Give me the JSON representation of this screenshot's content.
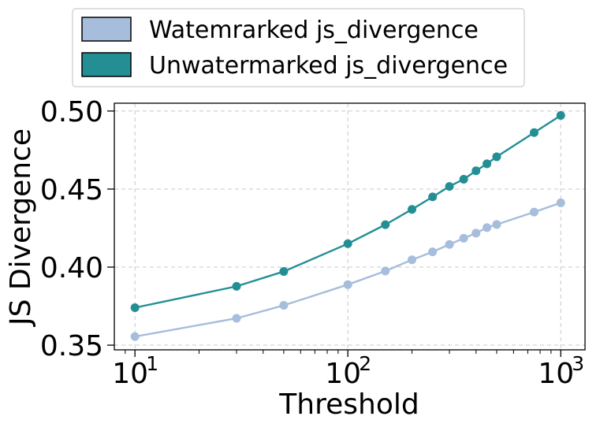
{
  "chart_data": {
    "type": "line",
    "title": "",
    "xlabel": "Threshold",
    "ylabel": "JS Divergence",
    "xscale": "log",
    "xlim": [
      8,
      1300
    ],
    "ylim": [
      0.347,
      0.505
    ],
    "grid": true,
    "legend_position": "top-center",
    "x_ticks": [
      {
        "value": 10,
        "base": "10",
        "exp": "1"
      },
      {
        "value": 100,
        "base": "10",
        "exp": "2"
      },
      {
        "value": 1000,
        "base": "10",
        "exp": "3"
      }
    ],
    "y_ticks": [
      {
        "value": 0.35,
        "label": "0.35"
      },
      {
        "value": 0.4,
        "label": "0.40"
      },
      {
        "value": 0.45,
        "label": "0.45"
      },
      {
        "value": 0.5,
        "label": "0.50"
      }
    ],
    "x": [
      10,
      30,
      50,
      100,
      150,
      200,
      250,
      300,
      350,
      400,
      450,
      500,
      750,
      1000
    ],
    "series": [
      {
        "name": "Watemrarked js_divergence",
        "color": "#a6bddb",
        "values": [
          0.3555,
          0.3672,
          0.3755,
          0.3888,
          0.3975,
          0.4047,
          0.4098,
          0.4145,
          0.4185,
          0.4218,
          0.4253,
          0.4273,
          0.4353,
          0.4412
        ]
      },
      {
        "name": "Unwatermarked js_divergence",
        "color": "#238f94",
        "values": [
          0.374,
          0.3877,
          0.3972,
          0.415,
          0.4272,
          0.437,
          0.445,
          0.4517,
          0.4563,
          0.4617,
          0.4662,
          0.4707,
          0.4862,
          0.4972
        ]
      }
    ]
  }
}
